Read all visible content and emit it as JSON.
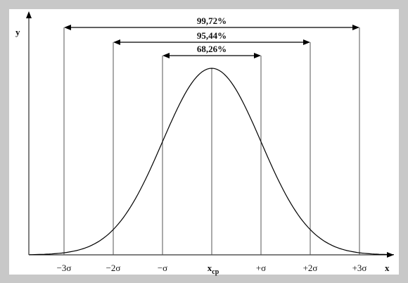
{
  "chart_data": {
    "type": "line",
    "title": "",
    "xlabel": "x",
    "ylabel": "y",
    "x_ticks": [
      {
        "x": -3,
        "label": "−3σ"
      },
      {
        "x": -2,
        "label": "−2σ"
      },
      {
        "x": -1,
        "label": "−σ"
      },
      {
        "x": 0,
        "label": "x",
        "sub": "cp"
      },
      {
        "x": 1,
        "label": "+σ"
      },
      {
        "x": 2,
        "label": "+2σ"
      },
      {
        "x": 3,
        "label": "+3σ"
      }
    ],
    "intervals": [
      {
        "from": -1,
        "to": 1,
        "label": "68,26%"
      },
      {
        "from": -2,
        "to": 2,
        "label": "95,44%"
      },
      {
        "from": -3,
        "to": 3,
        "label": "99,72%"
      }
    ],
    "curve": "normal distribution",
    "grid": false,
    "colors": {
      "background": "#c8c8c8",
      "plot_bg": "#ffffff",
      "line": "#000000",
      "guide": "#555555"
    }
  }
}
